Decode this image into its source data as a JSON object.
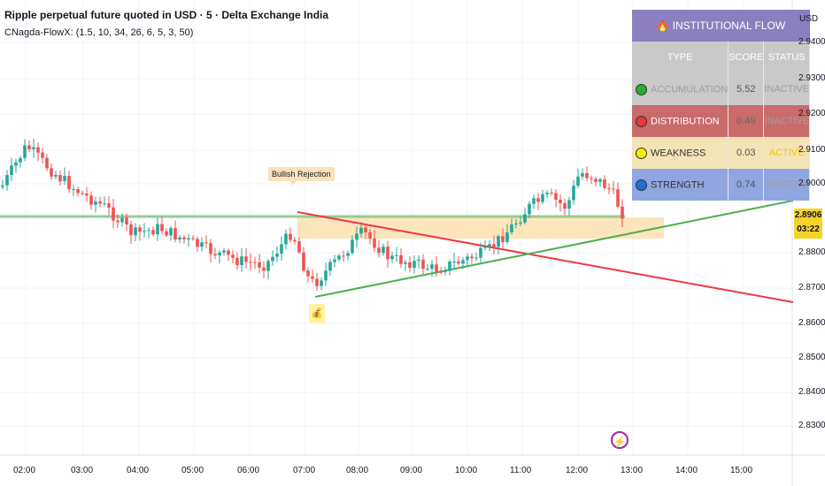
{
  "header": {
    "symbol_title": "Ripple perpetual future quoted in USD · 5 · Delta Exchange India",
    "indicator_label": "CNagda-FlowX: (1.5, 10, 34, 26, 6, 5, 3, 50)"
  },
  "price_axis": {
    "currency": "USD",
    "ticks": [
      "2.9400",
      "2.9300",
      "2.9200",
      "2.9100",
      "2.9000",
      "2.8800",
      "2.8700",
      "2.8600",
      "2.8500",
      "2.8400",
      "2.8300"
    ],
    "current_price": "2.8906",
    "countdown": "03:22"
  },
  "time_axis": {
    "ticks": [
      "02:00",
      "03:00",
      "04:00",
      "05:00",
      "06:00",
      "07:00",
      "08:00",
      "09:00",
      "10:00",
      "11:00",
      "12:00",
      "13:00",
      "14:00",
      "15:00"
    ]
  },
  "annotations": {
    "callout": "Bullish Rejection"
  },
  "flow_table": {
    "title": "INSTITUTIONAL FLOW",
    "columns": [
      "TYPE",
      "SCORE",
      "STATUS"
    ],
    "rows": [
      {
        "type": "ACCUMULATION",
        "score": "5.52",
        "status": "INACTIVE",
        "dot": "#23b02f",
        "bg": "#c9c9c9",
        "text": "#9e9e9e",
        "status_color": "#9e9e9e"
      },
      {
        "type": "DISTRIBUTION",
        "score": "0.49",
        "status": "INACTIVE",
        "dot": "#e53935",
        "bg": "#c96b6b",
        "text": "#ffffff",
        "status_color": "#9e9e9e"
      },
      {
        "type": "WEAKNESS",
        "score": "0.03",
        "status": "ACTIVE",
        "dot": "#f5f000",
        "bg": "#f3e4b5",
        "text": "#333333",
        "status_color": "#f5c400"
      },
      {
        "type": "STRENGTH",
        "score": "0.74",
        "status": "INACTIVE",
        "dot": "#1e6fd9",
        "bg": "#8fa6e0",
        "text": "#333333",
        "status_color": "#9e9e9e"
      }
    ]
  },
  "colors": {
    "bull": "#26a69a",
    "bear": "#ef5350",
    "support_line": "#4caf50",
    "resistance_line": "#f23645",
    "zone": "#fde0b0"
  }
}
